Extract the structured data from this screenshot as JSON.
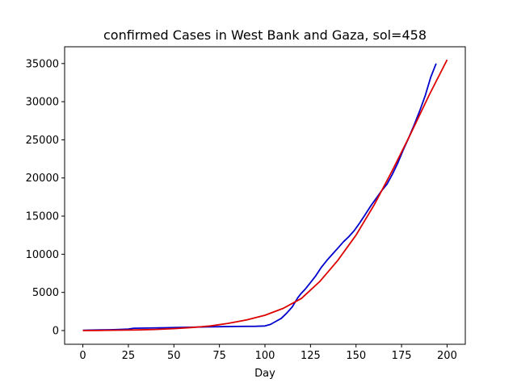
{
  "chart_data": {
    "type": "line",
    "title": "confirmed Cases in West Bank and Gaza, sol=458",
    "xlabel": "Day",
    "ylabel": "",
    "xlim": [
      -10,
      210
    ],
    "ylim": [
      -1800,
      37200
    ],
    "grid": false,
    "x_ticks": [
      0,
      25,
      50,
      75,
      100,
      125,
      150,
      175,
      200
    ],
    "y_ticks": [
      0,
      5000,
      10000,
      15000,
      20000,
      25000,
      30000,
      35000
    ],
    "series": [
      {
        "color": "#0000cc",
        "x": [
          0,
          5,
          10,
          15,
          20,
          25,
          28,
          35,
          45,
          55,
          65,
          75,
          85,
          95,
          100,
          103,
          106,
          109,
          112,
          115,
          118,
          120,
          122,
          125,
          128,
          131,
          134,
          137,
          140,
          143,
          146,
          149,
          152,
          155,
          158,
          161,
          164,
          167,
          170,
          173,
          176,
          179,
          182,
          185,
          188,
          191,
          194
        ],
        "y": [
          30,
          60,
          80,
          100,
          150,
          200,
          300,
          320,
          370,
          420,
          460,
          500,
          540,
          560,
          600,
          800,
          1200,
          1600,
          2300,
          3100,
          4300,
          4900,
          5400,
          6300,
          7200,
          8300,
          9200,
          10000,
          10800,
          11600,
          12300,
          13100,
          14100,
          15200,
          16300,
          17300,
          18300,
          19200,
          20500,
          22000,
          23700,
          25300,
          27000,
          28800,
          30800,
          33200,
          35000
        ]
      },
      {
        "color": "#dd0000",
        "x": [
          0,
          10,
          20,
          30,
          40,
          50,
          60,
          70,
          80,
          90,
          100,
          110,
          120,
          130,
          140,
          150,
          160,
          170,
          180,
          190,
          200
        ],
        "y": [
          0,
          20,
          50,
          80,
          150,
          250,
          400,
          600,
          950,
          1400,
          2000,
          2900,
          4200,
          6400,
          9200,
          12500,
          16500,
          21000,
          25800,
          30800,
          35500
        ]
      }
    ]
  }
}
